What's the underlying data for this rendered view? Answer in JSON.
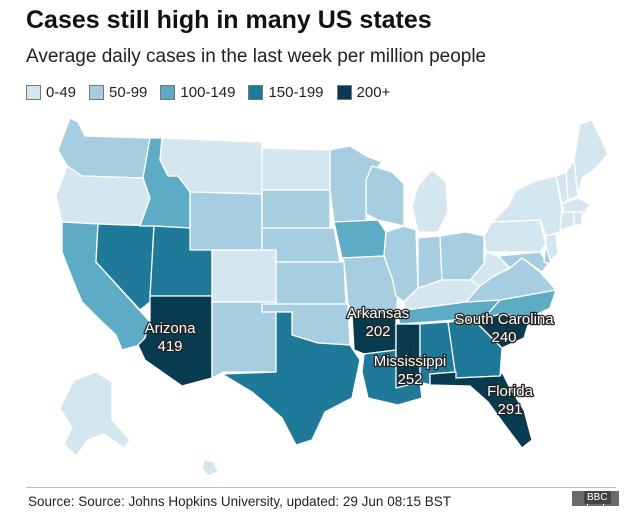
{
  "title": "Cases still high in many US states",
  "subtitle": "Average daily cases in the last week per million people",
  "legend": [
    {
      "label": "0-49",
      "color": "#d5e7ee"
    },
    {
      "label": "50-99",
      "color": "#a6cde0"
    },
    {
      "label": "100-149",
      "color": "#5eabc6"
    },
    {
      "label": "150-199",
      "color": "#1f7a99"
    },
    {
      "label": "200+",
      "color": "#093b50"
    }
  ],
  "callouts": [
    {
      "name": "Arizona",
      "value": "419"
    },
    {
      "name": "Arkansas",
      "value": "202"
    },
    {
      "name": "South Carolina",
      "value": "240"
    },
    {
      "name": "Mississippi",
      "value": "252"
    },
    {
      "name": "Florida",
      "value": "291"
    }
  ],
  "states": [
    {
      "id": "WA",
      "bin": 1
    },
    {
      "id": "OR",
      "bin": 0
    },
    {
      "id": "CA",
      "bin": 2
    },
    {
      "id": "NV",
      "bin": 3
    },
    {
      "id": "ID",
      "bin": 2
    },
    {
      "id": "MT",
      "bin": 0
    },
    {
      "id": "WY",
      "bin": 1
    },
    {
      "id": "UT",
      "bin": 3
    },
    {
      "id": "AZ",
      "bin": 4
    },
    {
      "id": "CO",
      "bin": 0
    },
    {
      "id": "NM",
      "bin": 1
    },
    {
      "id": "ND",
      "bin": 0
    },
    {
      "id": "SD",
      "bin": 1
    },
    {
      "id": "NE",
      "bin": 1
    },
    {
      "id": "KS",
      "bin": 1
    },
    {
      "id": "OK",
      "bin": 1
    },
    {
      "id": "TX",
      "bin": 3
    },
    {
      "id": "MN",
      "bin": 1
    },
    {
      "id": "IA",
      "bin": 2
    },
    {
      "id": "MO",
      "bin": 1
    },
    {
      "id": "AR",
      "bin": 4
    },
    {
      "id": "LA",
      "bin": 3
    },
    {
      "id": "WI",
      "bin": 1
    },
    {
      "id": "IL",
      "bin": 1
    },
    {
      "id": "MI",
      "bin": 0
    },
    {
      "id": "IN",
      "bin": 1
    },
    {
      "id": "OH",
      "bin": 1
    },
    {
      "id": "KY",
      "bin": 0
    },
    {
      "id": "TN",
      "bin": 2
    },
    {
      "id": "MS",
      "bin": 4
    },
    {
      "id": "AL",
      "bin": 3
    },
    {
      "id": "GA",
      "bin": 3
    },
    {
      "id": "FL",
      "bin": 4
    },
    {
      "id": "SC",
      "bin": 4
    },
    {
      "id": "NC",
      "bin": 2
    },
    {
      "id": "VA",
      "bin": 1
    },
    {
      "id": "WV",
      "bin": 0
    },
    {
      "id": "PA",
      "bin": 0
    },
    {
      "id": "NY",
      "bin": 0
    },
    {
      "id": "MD",
      "bin": 1
    },
    {
      "id": "DE",
      "bin": 1
    },
    {
      "id": "NJ",
      "bin": 0
    },
    {
      "id": "VT",
      "bin": 0
    },
    {
      "id": "NH",
      "bin": 0
    },
    {
      "id": "ME",
      "bin": 0
    },
    {
      "id": "MA",
      "bin": 0
    },
    {
      "id": "CT",
      "bin": 0
    },
    {
      "id": "RI",
      "bin": 0
    },
    {
      "id": "AK",
      "bin": 0
    },
    {
      "id": "HI",
      "bin": 0
    }
  ],
  "source": "Source: Source: Johns Hopkins University, updated: 29 Jun 08:15 BST",
  "branding": {
    "logo": "BBC",
    "tag": "BBC"
  }
}
